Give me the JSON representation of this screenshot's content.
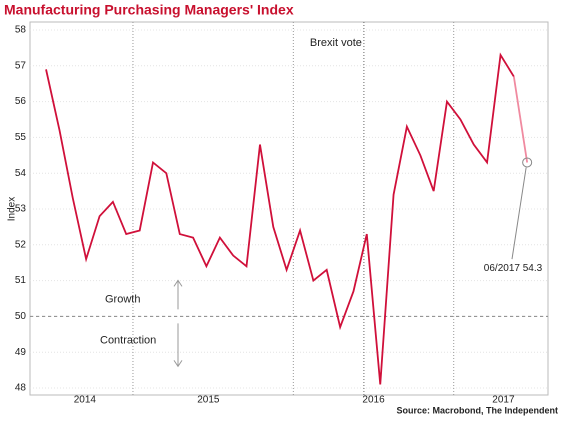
{
  "chart_data": {
    "type": "line",
    "title": "Manufacturing Purchasing Managers' Index",
    "y_label": "Index",
    "source": "Source: Macrobond, The Independent",
    "x": [
      2014.458,
      2014.542,
      2014.625,
      2014.708,
      2014.792,
      2014.875,
      2014.958,
      2015.042,
      2015.125,
      2015.208,
      2015.292,
      2015.375,
      2015.458,
      2015.542,
      2015.625,
      2015.708,
      2015.792,
      2015.875,
      2015.958,
      2016.042,
      2016.125,
      2016.208,
      2016.292,
      2016.375,
      2016.458,
      2016.542,
      2016.625,
      2016.708,
      2016.792,
      2016.875,
      2016.958,
      2017.042,
      2017.125,
      2017.208,
      2017.292,
      2017.375,
      2017.458
    ],
    "series": [
      {
        "name": "Manufacturing PMI",
        "color": "#d0103a",
        "last_segment_color": "#f08aa0",
        "values": [
          56.9,
          55.2,
          53.3,
          51.6,
          52.8,
          53.2,
          52.3,
          52.4,
          54.3,
          54.0,
          52.3,
          52.2,
          51.4,
          52.2,
          51.7,
          51.4,
          54.8,
          52.5,
          51.3,
          52.4,
          51.0,
          51.3,
          49.7,
          50.7,
          52.3,
          48.1,
          53.4,
          55.3,
          54.5,
          53.5,
          56.0,
          55.5,
          54.8,
          54.3,
          57.3,
          56.7,
          54.3
        ]
      }
    ],
    "xlim": [
      2014.358,
      2017.588
    ],
    "xticks": [
      {
        "value": 2014.7,
        "label": "2014"
      },
      {
        "value": 2015.47,
        "label": "2015"
      },
      {
        "value": 2016.5,
        "label": "2016"
      },
      {
        "value": 2017.31,
        "label": "2017"
      }
    ],
    "year_lines": [
      2015,
      2016,
      2017
    ],
    "ylim": [
      48,
      58
    ],
    "yticks": [
      48,
      49,
      50,
      51,
      52,
      53,
      54,
      55,
      56,
      57,
      58
    ],
    "grid": true,
    "threshold": 50,
    "event": {
      "text": "Brexit vote",
      "x": 2016.44
    },
    "growth_label": "Growth",
    "contraction_label": "Contraction",
    "last_point_label": "06/2017 54.3"
  }
}
